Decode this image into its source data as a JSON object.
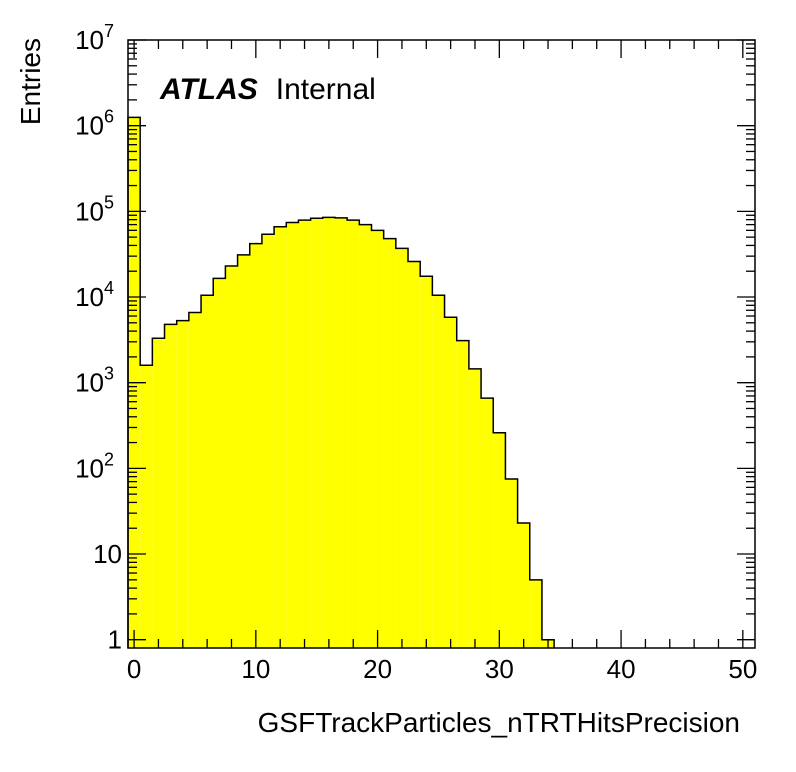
{
  "chart_data": {
    "type": "bar",
    "xlabel": "GSFTrackParticles_nTRTHitsPrecision",
    "ylabel": "Entries",
    "xlim": [
      -0.5,
      51
    ],
    "ylim": [
      0.8,
      10000000
    ],
    "yscale": "log",
    "fill_color": "#ffff00",
    "edge_color": "#000000",
    "grid": false,
    "bin_width": 1,
    "bin_low_edges": [
      -0.5,
      0.5,
      1.5,
      2.5,
      3.5,
      4.5,
      5.5,
      6.5,
      7.5,
      8.5,
      9.5,
      10.5,
      11.5,
      12.5,
      13.5,
      14.5,
      15.5,
      16.5,
      17.5,
      18.5,
      19.5,
      20.5,
      21.5,
      22.5,
      23.5,
      24.5,
      25.5,
      26.5,
      27.5,
      28.5,
      29.5,
      30.5,
      31.5,
      32.5,
      33.5
    ],
    "values": [
      1250000,
      1600,
      3300,
      4800,
      5300,
      6600,
      10500,
      16500,
      23000,
      31000,
      42000,
      54000,
      66000,
      74000,
      79000,
      83000,
      85000,
      84000,
      79000,
      70000,
      60000,
      48000,
      37000,
      26000,
      17500,
      10500,
      5800,
      3100,
      1450,
      660,
      260,
      75,
      23,
      5,
      1
    ],
    "xticks": [
      "0",
      "10",
      "20",
      "30",
      "40",
      "50"
    ],
    "yticks": [
      {
        "base": "1",
        "exp": ""
      },
      {
        "base": "10",
        "exp": ""
      },
      {
        "base": "10",
        "exp": "2"
      },
      {
        "base": "10",
        "exp": "3"
      },
      {
        "base": "10",
        "exp": "4"
      },
      {
        "base": "10",
        "exp": "5"
      },
      {
        "base": "10",
        "exp": "6"
      },
      {
        "base": "10",
        "exp": "7"
      }
    ],
    "annotation": {
      "bold": "ATLAS",
      "normal": "Internal"
    }
  }
}
